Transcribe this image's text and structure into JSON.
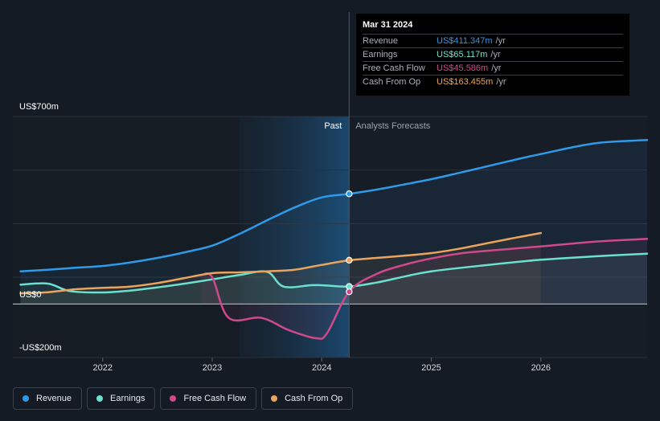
{
  "chart_data": {
    "type": "line",
    "y_axis": {
      "labels": [
        "US$700m",
        "US$0",
        "-US$200m"
      ],
      "ylim": [
        -200,
        700
      ]
    },
    "x_axis": {
      "ticks": [
        "2022",
        "2023",
        "2024",
        "2025",
        "2026"
      ],
      "xlim": [
        2021.18,
        2026.97
      ]
    },
    "regions": {
      "past_label": "Past",
      "forecast_label": "Analysts Forecasts",
      "divider_x": 2024.25,
      "highlight_start": 2023.25
    },
    "series": [
      {
        "key": "revenue",
        "name": "Revenue",
        "color": "#2f9ae8",
        "points": [
          [
            2021.25,
            122
          ],
          [
            2021.5,
            128
          ],
          [
            2021.75,
            135
          ],
          [
            2022.0,
            142
          ],
          [
            2022.25,
            155
          ],
          [
            2022.5,
            172
          ],
          [
            2022.75,
            193
          ],
          [
            2023.0,
            218
          ],
          [
            2023.25,
            262
          ],
          [
            2023.5,
            312
          ],
          [
            2023.75,
            360
          ],
          [
            2024.0,
            398
          ],
          [
            2024.25,
            411
          ],
          [
            2024.5,
            427
          ],
          [
            2024.75,
            446
          ],
          [
            2025.0,
            466
          ],
          [
            2025.25,
            489
          ],
          [
            2025.5,
            513
          ],
          [
            2025.75,
            537
          ],
          [
            2026.0,
            560
          ],
          [
            2026.5,
            600
          ],
          [
            2026.97,
            612
          ]
        ]
      },
      {
        "key": "earnings",
        "name": "Earnings",
        "color": "#6ce0cf",
        "points": [
          [
            2021.25,
            72
          ],
          [
            2021.5,
            76
          ],
          [
            2021.7,
            48
          ],
          [
            2022.0,
            43
          ],
          [
            2022.25,
            50
          ],
          [
            2022.5,
            62
          ],
          [
            2022.75,
            76
          ],
          [
            2023.0,
            92
          ],
          [
            2023.25,
            108
          ],
          [
            2023.5,
            120
          ],
          [
            2023.65,
            65
          ],
          [
            2023.9,
            70
          ],
          [
            2024.0,
            70
          ],
          [
            2024.25,
            65
          ],
          [
            2024.5,
            80
          ],
          [
            2024.75,
            102
          ],
          [
            2025.0,
            122
          ],
          [
            2025.5,
            145
          ],
          [
            2026.0,
            165
          ],
          [
            2026.5,
            178
          ],
          [
            2026.97,
            188
          ]
        ]
      },
      {
        "key": "free_cash_flow",
        "name": "Free Cash Flow",
        "color": "#d0498a",
        "points": [
          [
            2022.9,
            108
          ],
          [
            2023.0,
            100
          ],
          [
            2023.15,
            -52
          ],
          [
            2023.45,
            -52
          ],
          [
            2023.7,
            -98
          ],
          [
            2023.95,
            -128
          ],
          [
            2024.05,
            -108
          ],
          [
            2024.25,
            46
          ],
          [
            2024.5,
            112
          ],
          [
            2024.75,
            146
          ],
          [
            2025.0,
            170
          ],
          [
            2025.25,
            188
          ],
          [
            2025.5,
            198
          ],
          [
            2026.0,
            215
          ],
          [
            2026.5,
            233
          ],
          [
            2026.97,
            243
          ]
        ]
      },
      {
        "key": "cash_from_op",
        "name": "Cash From Op",
        "color": "#eaa45d",
        "points": [
          [
            2021.25,
            40
          ],
          [
            2021.5,
            44
          ],
          [
            2021.75,
            55
          ],
          [
            2022.0,
            60
          ],
          [
            2022.25,
            65
          ],
          [
            2022.5,
            78
          ],
          [
            2022.75,
            97
          ],
          [
            2023.0,
            115
          ],
          [
            2023.25,
            118
          ],
          [
            2023.5,
            122
          ],
          [
            2023.75,
            128
          ],
          [
            2024.0,
            146
          ],
          [
            2024.25,
            163
          ],
          [
            2024.5,
            172
          ],
          [
            2024.75,
            180
          ],
          [
            2025.0,
            190
          ],
          [
            2025.25,
            206
          ],
          [
            2025.5,
            226
          ],
          [
            2025.75,
            246
          ],
          [
            2026.0,
            265
          ]
        ]
      }
    ],
    "markers": [
      {
        "series": "revenue",
        "x": 2024.25,
        "y": 411.347
      },
      {
        "series": "cash_from_op",
        "x": 2024.25,
        "y": 163.455
      },
      {
        "series": "earnings",
        "x": 2024.25,
        "y": 65.117
      },
      {
        "series": "free_cash_flow",
        "x": 2024.25,
        "y": 45.586
      }
    ]
  },
  "tooltip": {
    "date": "Mar 31 2024",
    "rows": [
      {
        "label": "Revenue",
        "value": "US$411.347m",
        "unit": "/yr",
        "color": "#2f9ae8"
      },
      {
        "label": "Earnings",
        "value": "US$65.117m",
        "unit": "/yr",
        "color": "#6ce0cf"
      },
      {
        "label": "Free Cash Flow",
        "value": "US$45.586m",
        "unit": "/yr",
        "color": "#d0498a"
      },
      {
        "label": "Cash From Op",
        "value": "US$163.455m",
        "unit": "/yr",
        "color": "#eaa45d"
      }
    ]
  },
  "legend": [
    {
      "label": "Revenue",
      "color": "#2f9ae8"
    },
    {
      "label": "Earnings",
      "color": "#6ce0cf"
    },
    {
      "label": "Free Cash Flow",
      "color": "#d0498a"
    },
    {
      "label": "Cash From Op",
      "color": "#eaa45d"
    }
  ]
}
